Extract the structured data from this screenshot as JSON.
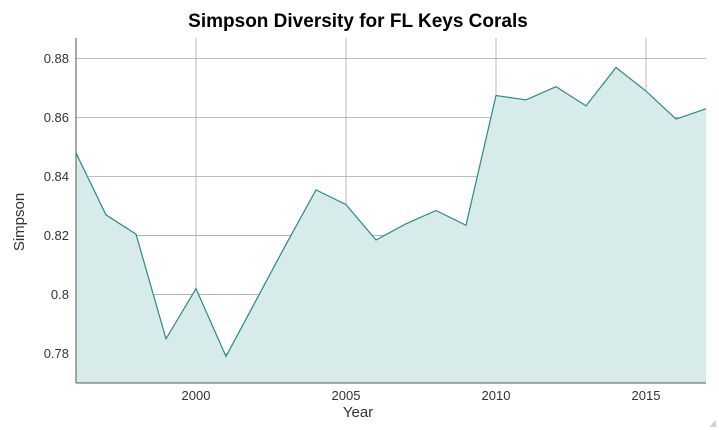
{
  "chart_data": {
    "type": "area",
    "title": "Simpson Diversity for FL Keys Corals",
    "xlabel": "Year",
    "ylabel": "Simpson",
    "xlim": [
      1996,
      2017
    ],
    "ylim": [
      0.77,
      0.887
    ],
    "x_ticks": [
      "2000",
      "2005",
      "2010",
      "2015"
    ],
    "y_ticks": [
      "0.78",
      "0.8",
      "0.82",
      "0.84",
      "0.86",
      "0.88"
    ],
    "x": [
      1996,
      1997,
      1998,
      1999,
      2000,
      2001,
      2002,
      2003,
      2004,
      2005,
      2006,
      2007,
      2008,
      2009,
      2010,
      2011,
      2012,
      2013,
      2014,
      2015,
      2016,
      2017
    ],
    "series": [
      {
        "values": [
          0.848,
          0.827,
          0.8205,
          0.785,
          0.802,
          0.779,
          0.798,
          0.817,
          0.8355,
          0.8305,
          0.8185,
          0.824,
          0.8285,
          0.8235,
          0.8675,
          0.866,
          0.8705,
          0.864,
          0.877,
          0.869,
          0.8595,
          0.863
        ]
      }
    ],
    "grid": true,
    "legend": "none",
    "colors": {
      "line": "#2a8a87",
      "fill": "#d6ebea",
      "grid": "#a8a8a8"
    }
  }
}
